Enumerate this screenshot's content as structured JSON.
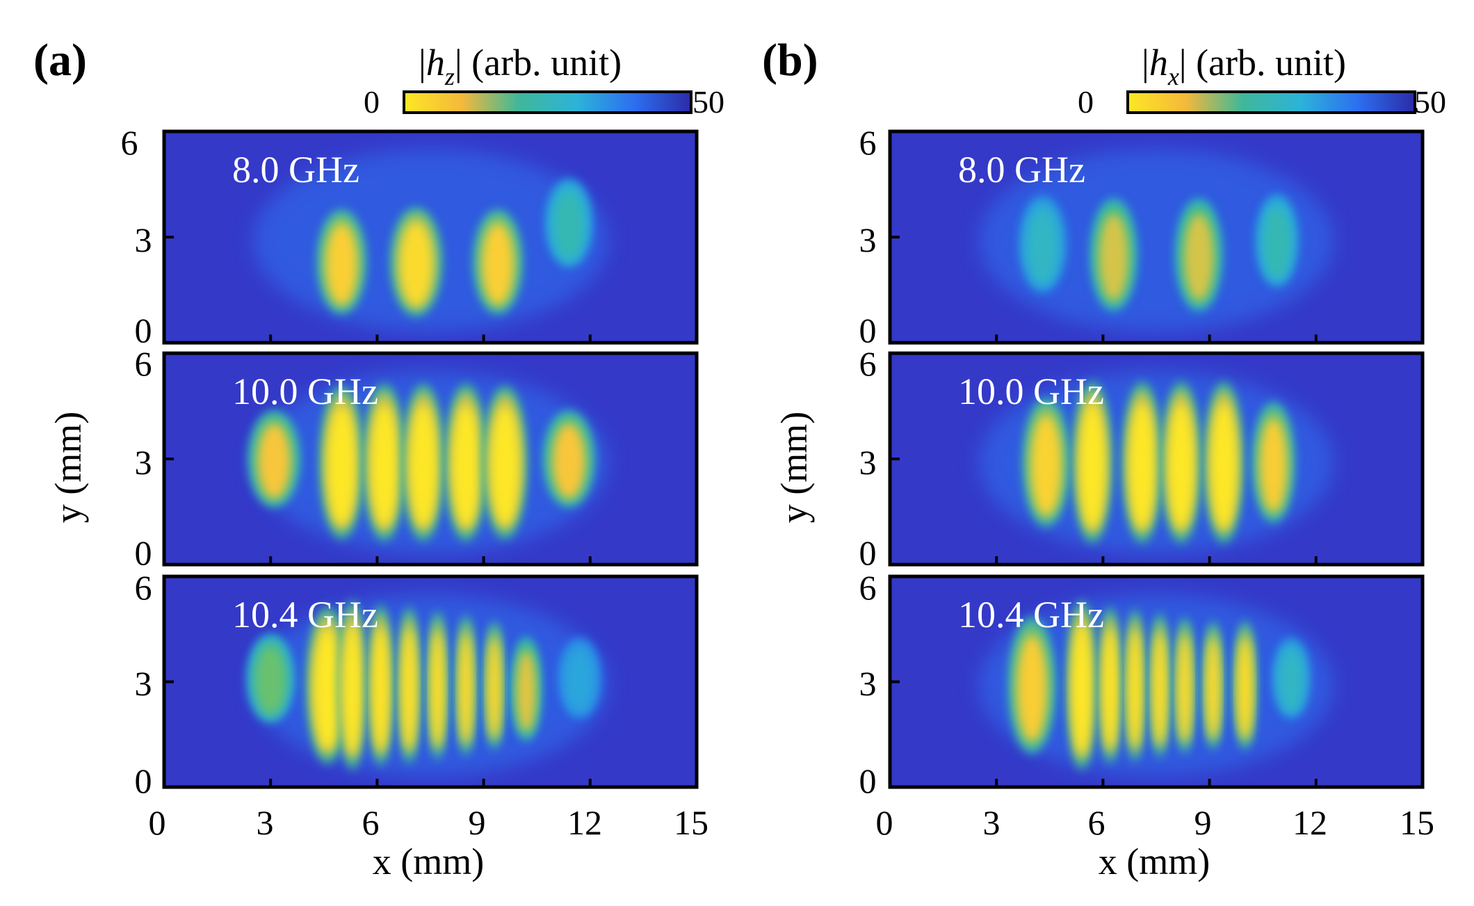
{
  "chart_data": [
    {
      "type": "heatmap",
      "panel": "(a)",
      "colorbar": {
        "label_var": "h",
        "label_sub": "z",
        "label_rest": " (arb. unit)",
        "min_label": "0",
        "max_label": "50",
        "range": [
          0,
          50
        ],
        "colormap": [
          "#fde725",
          "#f5b93a",
          "#3fb79a",
          "#2cb4d8",
          "#2d6ff0",
          "#2c2ba8"
        ]
      },
      "xlabel": "x (mm)",
      "ylabel": "y (mm)",
      "xlim": [
        0,
        15
      ],
      "ylim": [
        0,
        6
      ],
      "xticks": [
        "0",
        "3",
        "6",
        "9",
        "12",
        "15"
      ],
      "yticks": [
        "0",
        "3",
        "6"
      ],
      "subplots": [
        {
          "label": "8.0 GHz",
          "lobes": [
            {
              "x": 5.0,
              "y": 2.3,
              "w": 1.05,
              "h": 2.6,
              "intensity": 0.82
            },
            {
              "x": 7.1,
              "y": 2.3,
              "w": 1.1,
              "h": 2.7,
              "intensity": 0.9
            },
            {
              "x": 9.4,
              "y": 2.3,
              "w": 1.05,
              "h": 2.6,
              "intensity": 0.82
            },
            {
              "x": 11.4,
              "y": 3.4,
              "w": 1.0,
              "h": 2.2,
              "intensity": 0.35
            }
          ]
        },
        {
          "label": "10.0 GHz",
          "lobes": [
            {
              "x": 3.1,
              "y": 3.0,
              "w": 1.1,
              "h": 2.4,
              "intensity": 0.75
            },
            {
              "x": 5.0,
              "y": 2.9,
              "w": 0.95,
              "h": 3.8,
              "intensity": 1.0
            },
            {
              "x": 6.2,
              "y": 2.9,
              "w": 0.9,
              "h": 3.9,
              "intensity": 1.0
            },
            {
              "x": 7.3,
              "y": 2.9,
              "w": 0.9,
              "h": 3.9,
              "intensity": 1.0
            },
            {
              "x": 8.5,
              "y": 2.9,
              "w": 0.9,
              "h": 3.9,
              "intensity": 1.0
            },
            {
              "x": 9.6,
              "y": 2.9,
              "w": 0.95,
              "h": 3.8,
              "intensity": 1.0
            },
            {
              "x": 11.4,
              "y": 3.0,
              "w": 1.1,
              "h": 2.4,
              "intensity": 0.75
            }
          ]
        },
        {
          "label": "10.4 GHz",
          "lobes": [
            {
              "x": 3.0,
              "y": 3.1,
              "w": 1.0,
              "h": 2.2,
              "intensity": 0.55
            },
            {
              "x": 4.6,
              "y": 2.9,
              "w": 0.9,
              "h": 3.9,
              "intensity": 1.0
            },
            {
              "x": 5.3,
              "y": 2.9,
              "w": 0.6,
              "h": 4.2,
              "intensity": 1.0
            },
            {
              "x": 6.1,
              "y": 2.9,
              "w": 0.55,
              "h": 4.0,
              "intensity": 0.98
            },
            {
              "x": 6.9,
              "y": 2.9,
              "w": 0.5,
              "h": 3.9,
              "intensity": 0.95
            },
            {
              "x": 7.7,
              "y": 2.9,
              "w": 0.45,
              "h": 3.7,
              "intensity": 0.93
            },
            {
              "x": 8.5,
              "y": 2.9,
              "w": 0.45,
              "h": 3.5,
              "intensity": 0.9
            },
            {
              "x": 9.3,
              "y": 2.9,
              "w": 0.45,
              "h": 3.2,
              "intensity": 0.88
            },
            {
              "x": 10.2,
              "y": 2.8,
              "w": 0.65,
              "h": 2.6,
              "intensity": 0.72
            },
            {
              "x": 11.7,
              "y": 3.1,
              "w": 0.9,
              "h": 2.0,
              "intensity": 0.2
            }
          ]
        }
      ]
    },
    {
      "type": "heatmap",
      "panel": "(b)",
      "colorbar": {
        "label_var": "h",
        "label_sub": "x",
        "label_rest": " (arb. unit)",
        "min_label": "0",
        "max_label": "50",
        "range": [
          0,
          50
        ],
        "colormap": [
          "#fde725",
          "#f5b93a",
          "#3fb79a",
          "#2cb4d8",
          "#2d6ff0",
          "#2c2ba8"
        ]
      },
      "xlabel": "x (mm)",
      "ylabel": "y (mm)",
      "xlim": [
        0,
        15
      ],
      "ylim": [
        0,
        6
      ],
      "xticks": [
        "0",
        "3",
        "6",
        "9",
        "12",
        "15"
      ],
      "yticks": [
        "0",
        "3",
        "6"
      ],
      "subplots": [
        {
          "label": "8.0 GHz",
          "lobes": [
            {
              "x": 4.3,
              "y": 2.8,
              "w": 1.0,
              "h": 2.4,
              "intensity": 0.3
            },
            {
              "x": 6.3,
              "y": 2.5,
              "w": 1.0,
              "h": 2.8,
              "intensity": 0.7
            },
            {
              "x": 8.7,
              "y": 2.5,
              "w": 1.0,
              "h": 2.8,
              "intensity": 0.7
            },
            {
              "x": 10.9,
              "y": 2.9,
              "w": 0.9,
              "h": 2.3,
              "intensity": 0.35
            }
          ]
        },
        {
          "label": "10.0 GHz",
          "lobes": [
            {
              "x": 4.4,
              "y": 2.9,
              "w": 1.0,
              "h": 3.2,
              "intensity": 0.85
            },
            {
              "x": 5.7,
              "y": 2.9,
              "w": 0.85,
              "h": 4.0,
              "intensity": 1.0
            },
            {
              "x": 7.1,
              "y": 2.9,
              "w": 0.85,
              "h": 4.0,
              "intensity": 1.0
            },
            {
              "x": 8.2,
              "y": 2.9,
              "w": 0.85,
              "h": 4.0,
              "intensity": 1.0
            },
            {
              "x": 9.4,
              "y": 2.9,
              "w": 0.85,
              "h": 4.0,
              "intensity": 1.0
            },
            {
              "x": 10.8,
              "y": 2.9,
              "w": 0.9,
              "h": 3.0,
              "intensity": 0.8
            }
          ]
        },
        {
          "label": "10.4 GHz",
          "lobes": [
            {
              "x": 4.0,
              "y": 2.9,
              "w": 1.0,
              "h": 3.4,
              "intensity": 0.8
            },
            {
              "x": 5.4,
              "y": 2.9,
              "w": 0.65,
              "h": 4.2,
              "intensity": 1.0
            },
            {
              "x": 6.2,
              "y": 2.9,
              "w": 0.5,
              "h": 3.9,
              "intensity": 0.98
            },
            {
              "x": 6.9,
              "y": 2.9,
              "w": 0.45,
              "h": 3.8,
              "intensity": 0.96
            },
            {
              "x": 7.6,
              "y": 2.9,
              "w": 0.45,
              "h": 3.6,
              "intensity": 0.93
            },
            {
              "x": 8.3,
              "y": 2.9,
              "w": 0.45,
              "h": 3.4,
              "intensity": 0.9
            },
            {
              "x": 9.1,
              "y": 2.9,
              "w": 0.45,
              "h": 3.2,
              "intensity": 0.9
            },
            {
              "x": 10.0,
              "y": 2.9,
              "w": 0.5,
              "h": 3.2,
              "intensity": 0.92
            },
            {
              "x": 11.3,
              "y": 3.1,
              "w": 0.8,
              "h": 2.0,
              "intensity": 0.3
            }
          ]
        }
      ]
    }
  ]
}
